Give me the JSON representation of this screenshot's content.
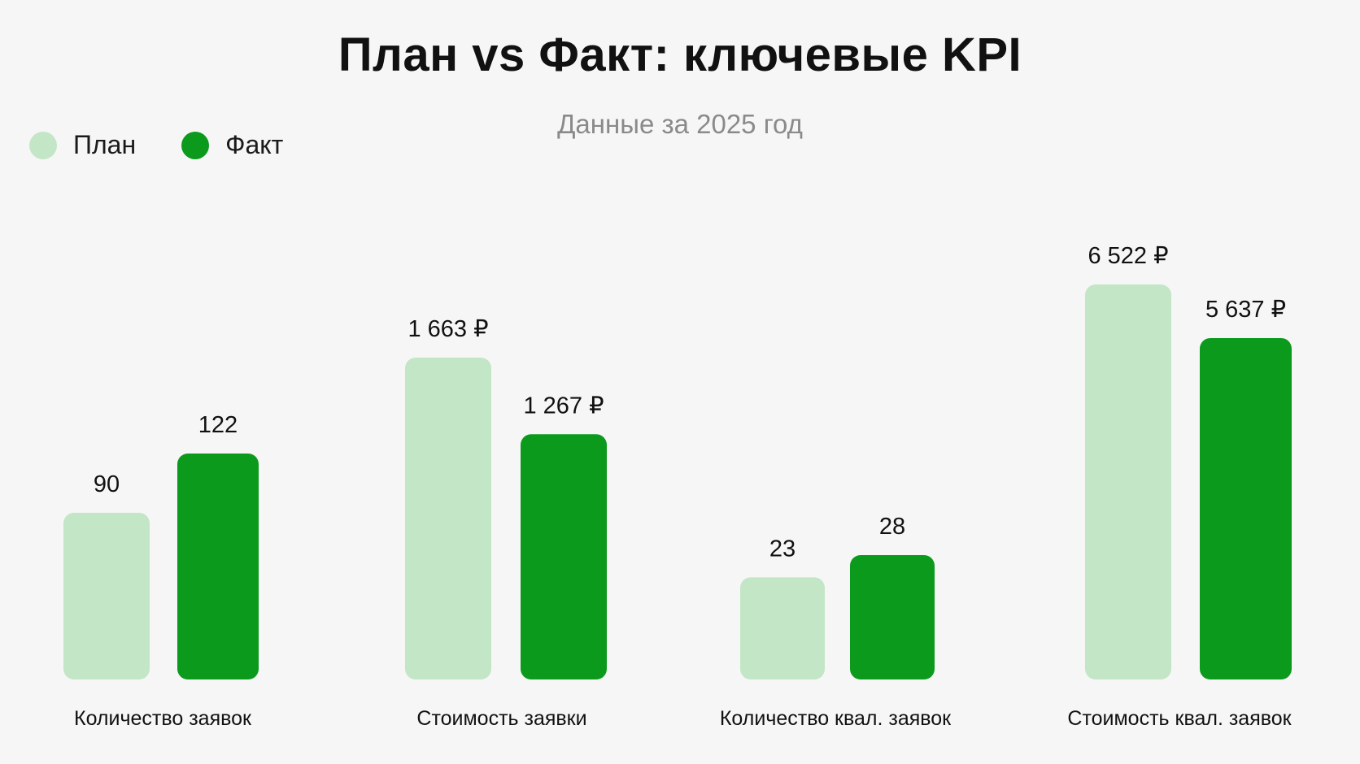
{
  "title": "План vs Факт: ключевые KPI",
  "subtitle": "Данные за 2025 год",
  "legend": [
    {
      "label": "План",
      "color": "#c3e6c6"
    },
    {
      "label": "Факт",
      "color": "#0b9a1c"
    }
  ],
  "chart_data": {
    "type": "bar",
    "title": "План vs Факт: ключевые KPI",
    "subtitle": "Данные за 2025 год",
    "categories": [
      "Количество заявок",
      "Стоимость заявки",
      "Количество квал. заявок",
      "Стоимость квал. заявок"
    ],
    "series": [
      {
        "name": "План",
        "color": "#c3e6c6",
        "values": [
          90,
          1663,
          23,
          6522
        ],
        "labels": [
          "90",
          "1 663 ₽",
          "23",
          "6 522 ₽"
        ]
      },
      {
        "name": "Факт",
        "color": "#0b9a1c",
        "values": [
          122,
          1267,
          28,
          5637
        ],
        "labels": [
          "122",
          "1 267 ₽",
          "28",
          "5 637 ₽"
        ]
      }
    ],
    "legend_position": "top-left",
    "grid": false,
    "y_axis_visible": false
  }
}
